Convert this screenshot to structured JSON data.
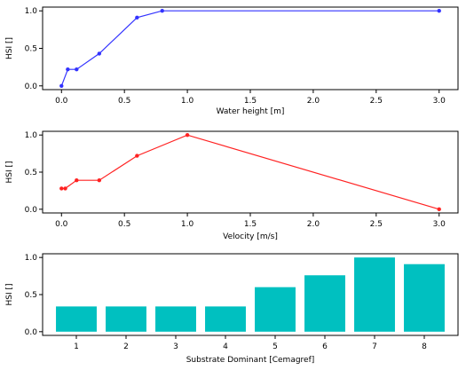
{
  "chart_data": [
    {
      "type": "line",
      "xlabel": "Water height [m]",
      "ylabel": "HSI []",
      "x": [
        0.0,
        0.05,
        0.12,
        0.3,
        0.6,
        0.8,
        3.0
      ],
      "y": [
        0.0,
        0.22,
        0.22,
        0.43,
        0.91,
        1.0,
        1.0
      ],
      "xlim": [
        -0.15,
        3.15
      ],
      "ylim": [
        -0.05,
        1.05
      ],
      "xticks": [
        "0.0",
        "0.5",
        "1.0",
        "1.5",
        "2.0",
        "2.5",
        "3.0"
      ],
      "yticks": [
        "0.0",
        "0.5",
        "1.0"
      ],
      "color": "#3333ff",
      "grid": false
    },
    {
      "type": "line",
      "xlabel": "Velocity [m/s]",
      "ylabel": "HSI []",
      "x": [
        0.0,
        0.03,
        0.12,
        0.3,
        0.6,
        1.0,
        3.0
      ],
      "y": [
        0.28,
        0.28,
        0.39,
        0.39,
        0.72,
        1.0,
        0.0
      ],
      "xlim": [
        -0.15,
        3.15
      ],
      "ylim": [
        -0.05,
        1.05
      ],
      "xticks": [
        "0.0",
        "0.5",
        "1.0",
        "1.5",
        "2.0",
        "2.5",
        "3.0"
      ],
      "yticks": [
        "0.0",
        "0.5",
        "1.0"
      ],
      "color": "#ff2222",
      "grid": false
    },
    {
      "type": "bar",
      "xlabel": "Substrate Dominant [Cemagref]",
      "ylabel": "HSI []",
      "categories": [
        "1",
        "2",
        "3",
        "4",
        "5",
        "6",
        "7",
        "8"
      ],
      "values": [
        0.34,
        0.34,
        0.34,
        0.34,
        0.6,
        0.76,
        1.0,
        0.91
      ],
      "ylim": [
        -0.05,
        1.05
      ],
      "yticks": [
        "0.0",
        "0.5",
        "1.0"
      ],
      "color": "#00c0c0",
      "grid": false
    }
  ]
}
